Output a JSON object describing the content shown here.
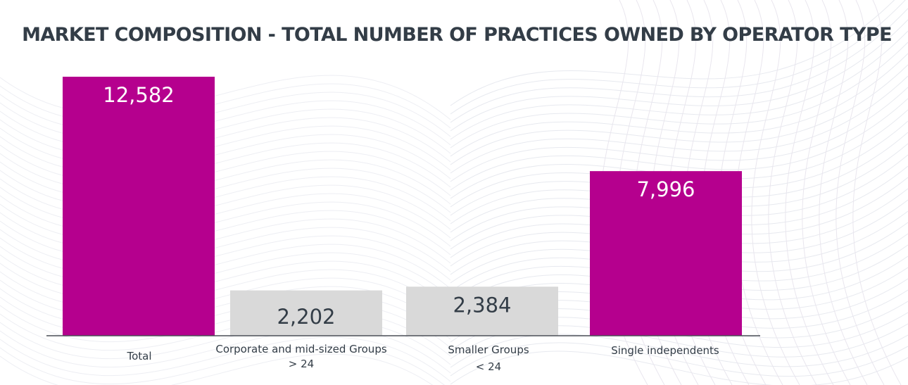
{
  "chart_data": {
    "type": "bar",
    "title": "MARKET COMPOSITION - TOTAL NUMBER OF PRACTICES OWNED BY OPERATOR TYPE",
    "categories": [
      [
        "Total"
      ],
      [
        "Corporate and  mid-sized Groups",
        "> 24"
      ],
      [
        "Smaller Groups",
        "< 24"
      ],
      [
        "Single independents"
      ]
    ],
    "values": [
      12582,
      2202,
      2384,
      7996
    ],
    "value_labels": [
      "12,582",
      "2,202",
      "2,384",
      "7,996"
    ],
    "bar_colors": [
      "#b5008e",
      "#d9d9d9",
      "#d9d9d9",
      "#b5008e"
    ],
    "value_label_colors": [
      "#ffffff",
      "#333d47",
      "#333d47",
      "#ffffff"
    ],
    "xlabel": "",
    "ylabel": "",
    "ylim": [
      0,
      12582
    ],
    "grid": false,
    "legend": "none"
  }
}
